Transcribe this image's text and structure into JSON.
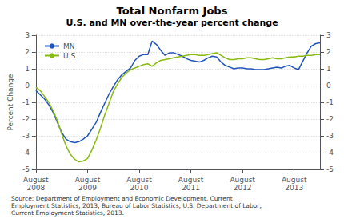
{
  "chart_data": {
    "type": "line",
    "title": "Total Nonfarm Jobs",
    "subtitle": "U.S. and MN over-the-year percent change",
    "ylabel": "Percent Change",
    "annotation": "Source: Department of Employment and Economic Development, Current\nEmployment Statistics, 2013; Bureau of Labor Statistics, U.S. Department of Labor,\nCurrent Employment Statistics, 2013.",
    "categories": [
      "August\n2008",
      null,
      null,
      null,
      null,
      null,
      null,
      null,
      null,
      null,
      null,
      null,
      "August\n2009",
      null,
      null,
      null,
      null,
      null,
      null,
      null,
      null,
      null,
      null,
      null,
      "August\n2010",
      null,
      null,
      null,
      null,
      null,
      null,
      null,
      null,
      null,
      null,
      null,
      "August\n2011",
      null,
      null,
      null,
      null,
      null,
      null,
      null,
      null,
      null,
      null,
      null,
      "August\n2012",
      null,
      null,
      null,
      null,
      null,
      null,
      null,
      null,
      null,
      null,
      null,
      "August\n2013",
      null,
      null,
      null,
      null,
      null,
      null
    ],
    "series": [
      {
        "name": "MN",
        "color": "#2255bb",
        "values": [
          -0.3,
          -0.55,
          -0.8,
          -1.15,
          -1.6,
          -2.2,
          -2.8,
          -3.2,
          -3.35,
          -3.4,
          -3.35,
          -3.2,
          -3.0,
          -2.6,
          -2.2,
          -1.6,
          -1.05,
          -0.5,
          -0.05,
          0.35,
          0.65,
          0.85,
          1.05,
          1.5,
          1.75,
          1.85,
          1.85,
          2.65,
          2.45,
          2.1,
          1.8,
          1.95,
          1.95,
          1.85,
          1.75,
          1.6,
          1.5,
          1.45,
          1.4,
          1.5,
          1.65,
          1.75,
          1.7,
          1.4,
          1.2,
          1.1,
          1.0,
          1.05,
          1.05,
          1.0,
          1.0,
          0.95,
          0.95,
          0.95,
          1.0,
          1.05,
          1.1,
          1.05,
          1.15,
          1.2,
          1.05,
          0.95,
          1.45,
          1.95,
          2.35,
          2.5,
          2.55
        ]
      },
      {
        "name": "U.S.",
        "color": "#88bb11",
        "values": [
          -0.1,
          -0.3,
          -0.65,
          -1.0,
          -1.5,
          -2.1,
          -2.9,
          -3.6,
          -4.1,
          -4.4,
          -4.55,
          -4.5,
          -4.35,
          -3.85,
          -3.25,
          -2.55,
          -1.75,
          -1.05,
          -0.35,
          0.1,
          0.5,
          0.75,
          0.95,
          1.05,
          1.15,
          1.25,
          1.3,
          1.15,
          1.35,
          1.5,
          1.55,
          1.6,
          1.65,
          1.7,
          1.75,
          1.8,
          1.85,
          1.85,
          1.8,
          1.8,
          1.85,
          1.9,
          1.95,
          1.8,
          1.65,
          1.55,
          1.55,
          1.6,
          1.6,
          1.65,
          1.65,
          1.6,
          1.55,
          1.55,
          1.6,
          1.65,
          1.6,
          1.6,
          1.65,
          1.7,
          1.7,
          1.75,
          1.75,
          1.8,
          1.8,
          1.85,
          1.85
        ]
      }
    ],
    "ylim": [
      -5,
      3
    ],
    "yticks": [
      -5,
      -4,
      -3,
      -2,
      -1,
      0,
      1,
      2,
      3
    ],
    "y2lim": [
      -5,
      3
    ],
    "y2ticks": [
      -5,
      -4,
      -3,
      -2,
      -1,
      0,
      1,
      2,
      3
    ],
    "grid": true,
    "legend": "upper left"
  }
}
